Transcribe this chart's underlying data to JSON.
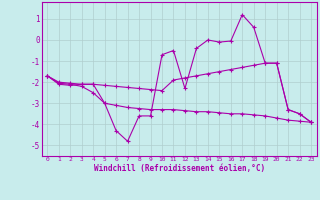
{
  "xlabel": "Windchill (Refroidissement éolien,°C)",
  "background_color": "#c8ecec",
  "grid_color": "#b0cece",
  "line_color": "#aa00aa",
  "x_hours": [
    0,
    1,
    2,
    3,
    4,
    5,
    6,
    7,
    8,
    9,
    10,
    11,
    12,
    13,
    14,
    15,
    16,
    17,
    18,
    19,
    20,
    21,
    22,
    23
  ],
  "windchill_line": [
    -1.7,
    -2.1,
    -2.15,
    -2.1,
    -2.1,
    -3.0,
    -4.3,
    -4.8,
    -3.6,
    -3.6,
    -0.7,
    -0.5,
    -2.3,
    -0.4,
    0.0,
    -0.1,
    -0.05,
    1.2,
    0.6,
    -1.1,
    -1.1,
    -3.3,
    -3.5,
    -3.9
  ],
  "upper_band": [
    -1.7,
    -2.0,
    -2.05,
    -2.1,
    -2.1,
    -2.15,
    -2.2,
    -2.25,
    -2.3,
    -2.35,
    -2.4,
    -1.9,
    -1.8,
    -1.7,
    -1.6,
    -1.5,
    -1.4,
    -1.3,
    -1.2,
    -1.1,
    -1.1,
    -3.3,
    -3.5,
    -3.9
  ],
  "lower_band": [
    -1.7,
    -2.05,
    -2.1,
    -2.2,
    -2.5,
    -3.0,
    -3.1,
    -3.2,
    -3.25,
    -3.3,
    -3.3,
    -3.3,
    -3.35,
    -3.4,
    -3.4,
    -3.45,
    -3.5,
    -3.5,
    -3.55,
    -3.6,
    -3.7,
    -3.8,
    -3.85,
    -3.9
  ],
  "ylim": [
    -5.5,
    1.8
  ],
  "yticks": [
    -5,
    -4,
    -3,
    -2,
    -1,
    0,
    1
  ],
  "xlim": [
    -0.5,
    23.5
  ],
  "xticks": [
    0,
    1,
    2,
    3,
    4,
    5,
    6,
    7,
    8,
    9,
    10,
    11,
    12,
    13,
    14,
    15,
    16,
    17,
    18,
    19,
    20,
    21,
    22,
    23
  ]
}
